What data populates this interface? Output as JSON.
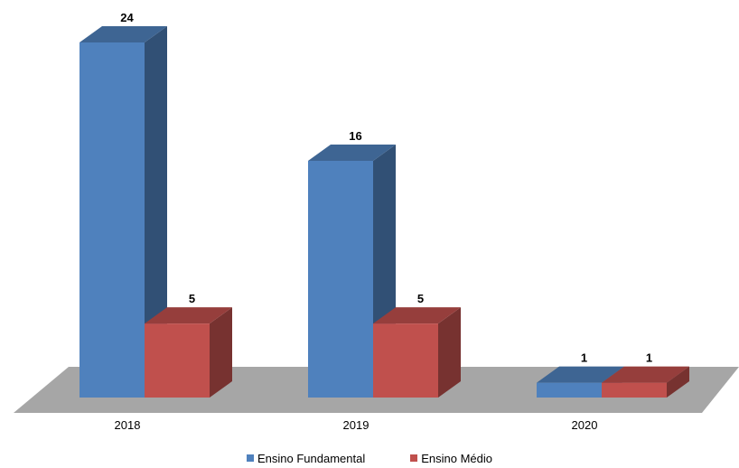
{
  "chart_data": {
    "type": "bar",
    "categories": [
      "2018",
      "2019",
      "2020"
    ],
    "series": [
      {
        "name": "Ensino Fundamental",
        "values": [
          24,
          16,
          1
        ],
        "color": "#4F81BD"
      },
      {
        "name": "Ensino Médio",
        "values": [
          5,
          5,
          1
        ],
        "color": "#C0504D"
      }
    ],
    "ylim": [
      0,
      24
    ],
    "three_d": true,
    "legend": "bottom",
    "grid": false
  }
}
